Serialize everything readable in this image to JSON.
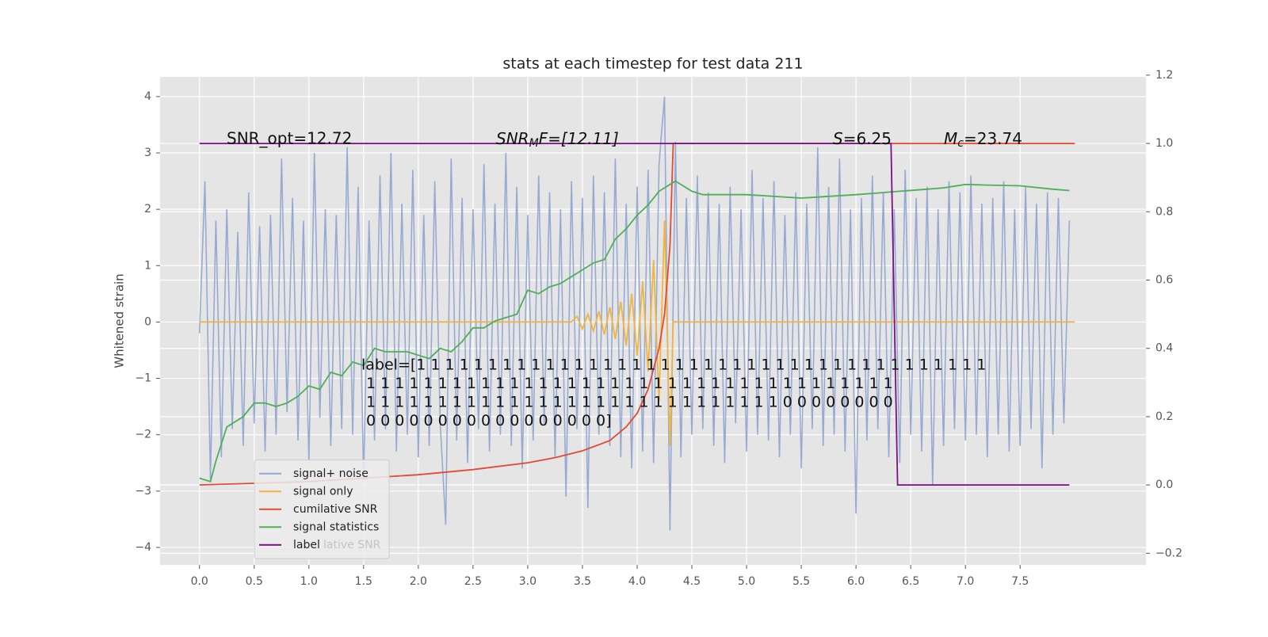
{
  "chart_data": {
    "type": "line",
    "title": "stats at each timestep for test data 211",
    "ylabel": "Whitened strain",
    "xlim": [
      -0.36,
      8.65
    ],
    "ylim": [
      -4.31,
      4.35
    ],
    "y2lim": [
      -0.234,
      1.195
    ],
    "xticks": [
      {
        "value": 0,
        "label": "0.0"
      },
      0.5,
      {
        "value": 1,
        "label": "1.0"
      },
      1.5,
      {
        "value": 2,
        "label": "2.0"
      },
      2.5,
      {
        "value": 3,
        "label": "3.0"
      },
      3.5,
      {
        "value": 4,
        "label": "4.0"
      },
      4.5,
      {
        "value": 5,
        "label": "5.0"
      },
      5.5,
      {
        "value": 6,
        "label": "6.0"
      },
      6.5,
      {
        "value": 7,
        "label": "7.0"
      },
      7.5
    ],
    "yticks": [
      {
        "value": -4,
        "label": "−4"
      },
      {
        "value": -3,
        "label": "−3"
      },
      {
        "value": -2,
        "label": "−2"
      },
      {
        "value": -1,
        "label": "−1"
      },
      0,
      1,
      2,
      3,
      4
    ],
    "y2ticks": [
      {
        "value": -0.2,
        "label": "−0.2"
      },
      {
        "value": 0,
        "label": "0.0"
      },
      0.2,
      0.4,
      0.6,
      0.8,
      {
        "value": 1,
        "label": "1.0"
      },
      1.2
    ],
    "grid": true,
    "legend": "lower left",
    "series": [
      {
        "name": "signal+ noise",
        "color": "#92a8d1",
        "axis": "y",
        "x": [
          0,
          0.05,
          0.1,
          0.15,
          0.2,
          0.25,
          0.3,
          0.35,
          0.4,
          0.45,
          0.5,
          0.55,
          0.6,
          0.65,
          0.7,
          0.75,
          0.8,
          0.85,
          0.9,
          0.95,
          1,
          1.05,
          1.1,
          1.15,
          1.2,
          1.25,
          1.3,
          1.35,
          1.4,
          1.45,
          1.5,
          1.55,
          1.6,
          1.65,
          1.7,
          1.75,
          1.8,
          1.85,
          1.9,
          1.95,
          2,
          2.05,
          2.1,
          2.15,
          2.2,
          2.25,
          2.3,
          2.35,
          2.4,
          2.45,
          2.5,
          2.55,
          2.6,
          2.65,
          2.7,
          2.75,
          2.8,
          2.85,
          2.9,
          2.95,
          3,
          3.05,
          3.1,
          3.15,
          3.2,
          3.25,
          3.3,
          3.35,
          3.4,
          3.45,
          3.5,
          3.55,
          3.6,
          3.65,
          3.7,
          3.75,
          3.8,
          3.85,
          3.9,
          3.95,
          4,
          4.05,
          4.1,
          4.15,
          4.2,
          4.25,
          4.3,
          4.35,
          4.4,
          4.45,
          4.5,
          4.55,
          4.6,
          4.65,
          4.7,
          4.75,
          4.8,
          4.85,
          4.9,
          4.95,
          5,
          5.05,
          5.1,
          5.15,
          5.2,
          5.25,
          5.3,
          5.35,
          5.4,
          5.45,
          5.5,
          5.55,
          5.6,
          5.65,
          5.7,
          5.75,
          5.8,
          5.85,
          5.9,
          5.95,
          6,
          6.05,
          6.1,
          6.15,
          6.2,
          6.25,
          6.3,
          6.35,
          6.4,
          6.45,
          6.5,
          6.55,
          6.6,
          6.65,
          6.7,
          6.75,
          6.8,
          6.85,
          6.9,
          6.95,
          7,
          7.05,
          7.1,
          7.15,
          7.2,
          7.25,
          7.3,
          7.35,
          7.4,
          7.45,
          7.5,
          7.55,
          7.6,
          7.65,
          7.7,
          7.75,
          7.8,
          7.85,
          7.9,
          7.95
        ],
        "values": [
          -0.2,
          2.5,
          -2.8,
          1.8,
          -2.4,
          2.0,
          -1.9,
          1.6,
          -2.2,
          2.3,
          -1.8,
          1.7,
          -2.3,
          1.9,
          -2.0,
          2.9,
          -1.6,
          2.2,
          -2.1,
          1.8,
          -2.5,
          3.0,
          -1.7,
          2.0,
          -2.2,
          1.9,
          -1.9,
          3.1,
          -2.0,
          2.4,
          -2.8,
          1.8,
          -2.1,
          2.6,
          -1.9,
          3.0,
          -2.3,
          2.1,
          -2.0,
          2.7,
          -2.4,
          1.9,
          -2.2,
          2.5,
          -1.8,
          -3.6,
          2.9,
          -2.1,
          2.2,
          -2.5,
          2.0,
          -1.9,
          2.8,
          -2.3,
          2.1,
          -2.0,
          3.0,
          -2.2,
          2.4,
          -2.6,
          1.9,
          -2.1,
          2.6,
          -1.8,
          2.3,
          -2.4,
          2.0,
          -3.1,
          2.5,
          -1.9,
          2.2,
          -3.3,
          2.6,
          -2.0,
          2.3,
          -2.2,
          2.9,
          -2.4,
          2.1,
          -2.6,
          2.4,
          -2.3,
          2.7,
          -2.5,
          2.8,
          4.0,
          -3.7,
          3.2,
          -2.4,
          2.2,
          -2.0,
          2.6,
          -1.9,
          2.3,
          -2.2,
          2.1,
          -2.5,
          2.4,
          -1.8,
          2.0,
          -2.3,
          2.7,
          -2.0,
          2.2,
          -2.1,
          2.5,
          -2.4,
          1.9,
          -2.0,
          2.3,
          -2.6,
          2.1,
          -1.9,
          3.1,
          -2.2,
          2.4,
          -2.0,
          2.9,
          -2.3,
          2.0,
          -3.4,
          2.2,
          -2.1,
          2.6,
          -1.9,
          2.3,
          -2.4,
          2.0,
          -2.5,
          2.7,
          -2.0,
          2.2,
          -2.3,
          2.4,
          -2.9,
          2.0,
          -2.2,
          2.5,
          -1.9,
          2.3,
          -2.1,
          2.6,
          -2.0,
          2.1,
          -2.4,
          2.2,
          -2.0,
          2.5,
          -2.3,
          2.0,
          -2.2,
          2.4,
          -1.9,
          2.1,
          -2.6,
          2.3,
          -2.0,
          2.2,
          -1.8,
          1.8
        ]
      },
      {
        "name": "signal only",
        "color": "#f0b440",
        "axis": "y",
        "x": [
          0,
          3.4,
          3.45,
          3.5,
          3.55,
          3.6,
          3.65,
          3.7,
          3.75,
          3.8,
          3.85,
          3.9,
          3.95,
          4.0,
          4.05,
          4.1,
          4.15,
          4.2,
          4.25,
          4.3,
          4.33,
          8.0
        ],
        "values": [
          0,
          0,
          0.1,
          -0.12,
          0.14,
          -0.16,
          0.19,
          -0.22,
          0.26,
          -0.3,
          0.36,
          -0.42,
          0.5,
          -0.6,
          0.72,
          -0.88,
          1.1,
          -1.4,
          1.8,
          -2.2,
          0,
          0
        ]
      },
      {
        "name": "cumilative SNR",
        "color": "#e24a33",
        "axis": "y2",
        "x": [
          0,
          0.5,
          1,
          1.5,
          2,
          2.5,
          3,
          3.25,
          3.5,
          3.75,
          3.9,
          4.0,
          4.1,
          4.2,
          4.25,
          4.3,
          4.33,
          8.0
        ],
        "values": [
          0,
          0.005,
          0.01,
          0.02,
          0.03,
          0.045,
          0.065,
          0.08,
          0.1,
          0.13,
          0.17,
          0.21,
          0.28,
          0.4,
          0.5,
          0.7,
          1.0,
          1.0
        ]
      },
      {
        "name": "signal statistics",
        "color": "#4fae5a",
        "axis": "y2",
        "x": [
          0,
          0.1,
          0.15,
          0.25,
          0.4,
          0.5,
          0.6,
          0.7,
          0.8,
          0.9,
          1.0,
          1.1,
          1.2,
          1.3,
          1.4,
          1.5,
          1.6,
          1.7,
          1.8,
          1.9,
          2.0,
          2.1,
          2.2,
          2.3,
          2.4,
          2.5,
          2.6,
          2.7,
          2.8,
          2.9,
          3.0,
          3.1,
          3.2,
          3.3,
          3.4,
          3.5,
          3.6,
          3.7,
          3.8,
          3.9,
          4.0,
          4.1,
          4.2,
          4.3,
          4.35,
          4.5,
          4.6,
          5.0,
          5.5,
          6.0,
          6.2,
          6.4,
          6.6,
          6.8,
          7.0,
          7.2,
          7.5,
          7.8,
          7.95
        ],
        "values": [
          0.02,
          0.01,
          0.07,
          0.17,
          0.2,
          0.24,
          0.24,
          0.23,
          0.24,
          0.26,
          0.29,
          0.28,
          0.33,
          0.32,
          0.36,
          0.35,
          0.4,
          0.39,
          0.39,
          0.39,
          0.38,
          0.37,
          0.4,
          0.39,
          0.42,
          0.46,
          0.46,
          0.48,
          0.49,
          0.5,
          0.57,
          0.56,
          0.58,
          0.59,
          0.61,
          0.63,
          0.65,
          0.66,
          0.72,
          0.75,
          0.79,
          0.82,
          0.86,
          0.88,
          0.89,
          0.86,
          0.85,
          0.85,
          0.84,
          0.85,
          0.855,
          0.86,
          0.865,
          0.87,
          0.88,
          0.878,
          0.876,
          0.866,
          0.862
        ]
      },
      {
        "name": "label",
        "color": "#7b0f86",
        "axis": "y2",
        "x": [
          0,
          6.32,
          6.38,
          7.95
        ],
        "values": [
          1,
          1,
          0,
          0
        ]
      }
    ],
    "annotations": {
      "snr_opt": "SNR_opt=12.72",
      "snr_mf": {
        "base": "SNR",
        "sub": "M",
        "rest": "F=[12.11]"
      },
      "s": {
        "italic": "S",
        "rest": "=6.25"
      },
      "mc": {
        "base": "M",
        "sub": "c",
        "rest": "=23.74"
      },
      "label_lines": [
        "label=[1 1 1 1 1 1 1 1 1 1 1 1 1 1 1 1 1 1 1 1 1 1 1 1 1 1 1 1 1 1 1 1 1 1 1 1 1 1 1 1",
        "1 1 1 1 1 1 1 1 1 1 1 1 1 1 1 1 1 1 1 1 1 1 1 1 1 1 1 1 1 1 1 1 1 1 1 1 1",
        "1 1 1 1 1 1 1 1 1 1 1 1 1 1 1 1 1 1 1 1 1 1 1 1 1 1 1 1 1 0 0 0 0 0 0 0 0",
        "0 0 0 0 0 0 0 0 0 0 0 0 0 0 0 0 0]"
      ]
    },
    "legend_ghost": "lative SNR"
  }
}
